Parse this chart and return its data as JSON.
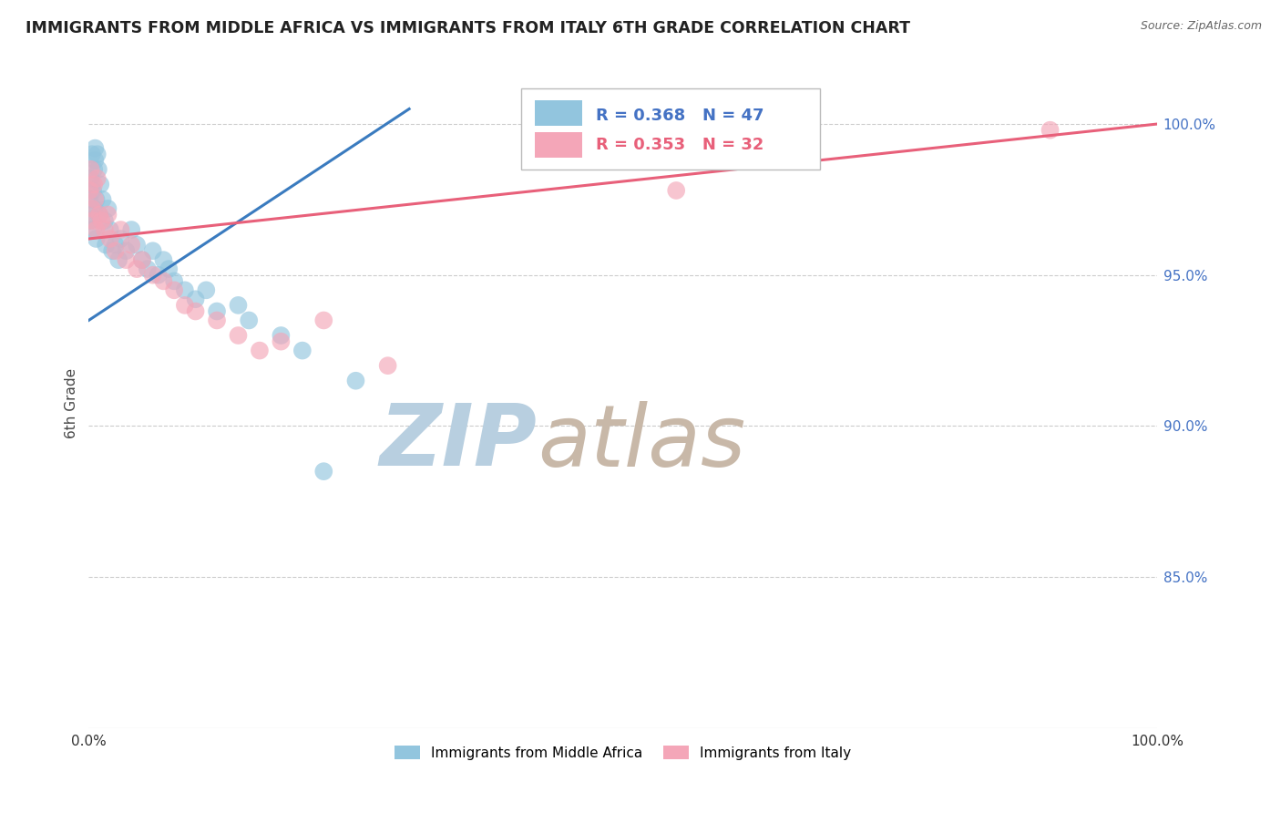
{
  "title": "IMMIGRANTS FROM MIDDLE AFRICA VS IMMIGRANTS FROM ITALY 6TH GRADE CORRELATION CHART",
  "source": "Source: ZipAtlas.com",
  "ylabel": "6th Grade",
  "xlim": [
    0,
    100
  ],
  "ylim": [
    80,
    101.5
  ],
  "yticks": [
    85,
    90,
    95,
    100
  ],
  "ytick_labels": [
    "85.0%",
    "90.0%",
    "95.0%",
    "100.0%"
  ],
  "legend_label_blue": "Immigrants from Middle Africa",
  "legend_label_pink": "Immigrants from Italy",
  "R_blue": 0.368,
  "N_blue": 47,
  "R_pink": 0.353,
  "N_pink": 32,
  "blue_color": "#92c5de",
  "pink_color": "#f4a6b8",
  "blue_line_color": "#3a7bbf",
  "pink_line_color": "#e8607a",
  "blue_scatter_x": [
    0.1,
    0.1,
    0.2,
    0.2,
    0.3,
    0.3,
    0.4,
    0.4,
    0.5,
    0.5,
    0.6,
    0.6,
    0.7,
    0.7,
    0.8,
    0.9,
    1.0,
    1.1,
    1.3,
    1.5,
    1.6,
    1.8,
    2.0,
    2.2,
    2.5,
    2.8,
    3.0,
    3.5,
    4.0,
    4.5,
    5.0,
    5.5,
    6.0,
    6.5,
    7.0,
    7.5,
    8.0,
    9.0,
    10.0,
    11.0,
    12.0,
    14.0,
    15.0,
    18.0,
    20.0,
    22.0,
    25.0
  ],
  "blue_scatter_y": [
    97.5,
    96.8,
    98.2,
    97.0,
    99.0,
    98.0,
    97.8,
    96.5,
    98.5,
    97.2,
    99.2,
    98.8,
    97.5,
    96.2,
    99.0,
    98.5,
    97.0,
    98.0,
    97.5,
    96.8,
    96.0,
    97.2,
    96.5,
    95.8,
    96.0,
    95.5,
    96.2,
    95.8,
    96.5,
    96.0,
    95.5,
    95.2,
    95.8,
    95.0,
    95.5,
    95.2,
    94.8,
    94.5,
    94.2,
    94.5,
    93.8,
    94.0,
    93.5,
    93.0,
    92.5,
    88.5,
    91.5
  ],
  "pink_scatter_x": [
    0.1,
    0.2,
    0.3,
    0.4,
    0.5,
    0.6,
    0.7,
    0.8,
    1.0,
    1.2,
    1.5,
    1.8,
    2.0,
    2.5,
    3.0,
    3.5,
    4.0,
    4.5,
    5.0,
    6.0,
    7.0,
    8.0,
    9.0,
    10.0,
    12.0,
    14.0,
    16.0,
    18.0,
    22.0,
    28.0,
    55.0,
    90.0
  ],
  "pink_scatter_y": [
    97.8,
    98.5,
    97.2,
    96.8,
    98.0,
    97.5,
    96.5,
    98.2,
    97.0,
    96.8,
    96.5,
    97.0,
    96.2,
    95.8,
    96.5,
    95.5,
    96.0,
    95.2,
    95.5,
    95.0,
    94.8,
    94.5,
    94.0,
    93.8,
    93.5,
    93.0,
    92.5,
    92.8,
    93.5,
    92.0,
    97.8,
    99.8
  ],
  "watermark_zip": "ZIP",
  "watermark_atlas": "atlas",
  "watermark_color_zip": "#b8cfe0",
  "watermark_color_atlas": "#c8b8a8",
  "background_color": "#ffffff",
  "grid_color": "#cccccc",
  "title_color": "#222222",
  "ylabel_color": "#444444",
  "ytick_color": "#4472c4",
  "xtick_color": "#333333",
  "source_color": "#666666"
}
